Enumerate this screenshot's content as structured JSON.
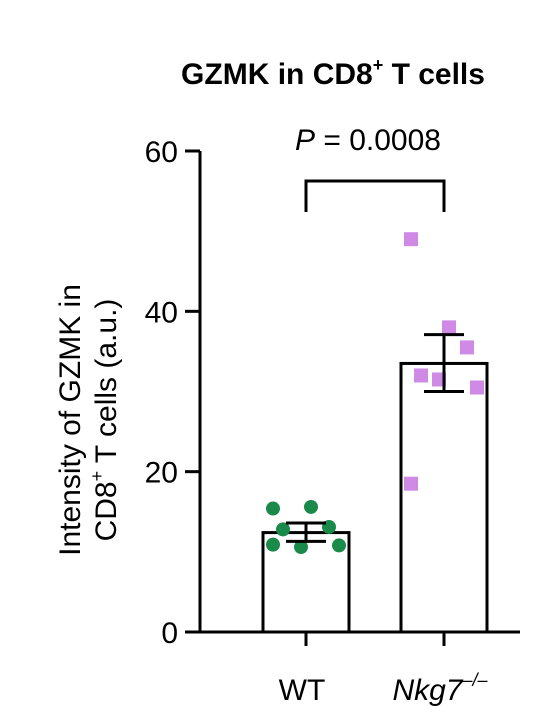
{
  "chart_data": {
    "type": "bar",
    "title_main": "GZMK in CD8",
    "title_sup": "+",
    "title_tail": " T cells",
    "ylabel_line1": "Intensity of GZMK in",
    "ylabel_line2_main": "CD8",
    "ylabel_line2_sup": "+",
    "ylabel_line2_tail": " T cells (a.u.)",
    "ylim": [
      0,
      60
    ],
    "yticks": [
      "0",
      "20",
      "40",
      "60"
    ],
    "annotation": {
      "p_symbol": "P",
      "p_text": " = 0.0008"
    },
    "categories": [
      {
        "label": "WT",
        "italic": false,
        "sup": ""
      },
      {
        "label": "Nkg7",
        "italic": true,
        "sup": "–/–"
      }
    ],
    "series": [
      {
        "mean": 12.4,
        "error": [
          11.3,
          13.6
        ],
        "points": [
          15.4,
          15.6,
          13.1,
          12.8,
          10.6,
          10.8,
          10.9
        ],
        "point_color": "#1a8a4a",
        "point_shape": "circle"
      },
      {
        "mean": 33.5,
        "error": [
          30.0,
          37.1
        ],
        "points": [
          49.0,
          38.0,
          35.5,
          32.0,
          31.5,
          30.5,
          18.5
        ],
        "point_color": "#cf8ae6",
        "point_shape": "square"
      }
    ]
  }
}
